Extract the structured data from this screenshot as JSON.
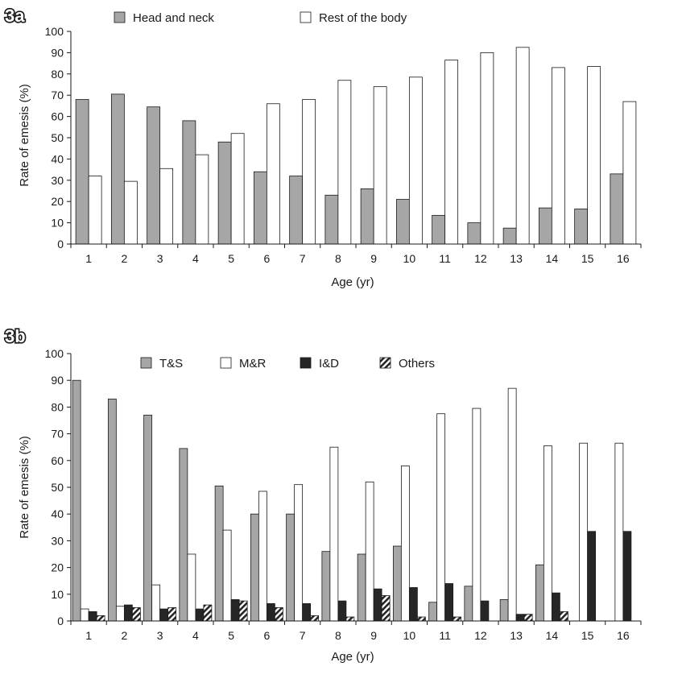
{
  "chart_data": [
    {
      "panel_label": "3a",
      "type": "bar",
      "xlabel": "Age (yr)",
      "ylabel": "Rate of emesis (%)",
      "ylim": [
        0,
        100
      ],
      "yticks": [
        0,
        10,
        20,
        30,
        40,
        50,
        60,
        70,
        80,
        90,
        100
      ],
      "categories": [
        "1",
        "2",
        "3",
        "4",
        "5",
        "6",
        "7",
        "8",
        "9",
        "10",
        "11",
        "12",
        "13",
        "14",
        "15",
        "16"
      ],
      "grid": false,
      "legend_position": "top",
      "series": [
        {
          "name": "Head and neck",
          "color": "#a6a6a6",
          "pattern": "solid",
          "values": [
            68,
            70.5,
            64.5,
            58,
            48,
            34,
            32,
            23,
            26,
            21,
            13.5,
            10,
            7.5,
            17,
            16.5,
            33
          ]
        },
        {
          "name": "Rest of the body",
          "color": "#ffffff",
          "pattern": "outline",
          "values": [
            32,
            29.5,
            35.5,
            42,
            52,
            66,
            68,
            77,
            74,
            78.5,
            86.5,
            90,
            92.5,
            83,
            83.5,
            67
          ]
        }
      ]
    },
    {
      "panel_label": "3b",
      "type": "bar",
      "xlabel": "Age (yr)",
      "ylabel": "Rate of emesis (%)",
      "ylim": [
        0,
        100
      ],
      "yticks": [
        0,
        10,
        20,
        30,
        40,
        50,
        60,
        70,
        80,
        90,
        100
      ],
      "categories": [
        "1",
        "2",
        "3",
        "4",
        "5",
        "6",
        "7",
        "8",
        "9",
        "10",
        "11",
        "12",
        "13",
        "14",
        "15",
        "16"
      ],
      "grid": false,
      "legend_position": "top",
      "series": [
        {
          "name": "T&S",
          "color": "#a6a6a6",
          "pattern": "solid",
          "values": [
            90,
            83,
            77,
            64.5,
            50.5,
            40,
            40,
            26,
            25,
            28,
            7,
            13,
            8,
            21,
            0,
            0
          ]
        },
        {
          "name": "M&R",
          "color": "#ffffff",
          "pattern": "outline",
          "values": [
            4.5,
            5.5,
            13.5,
            25,
            34,
            48.5,
            51,
            65,
            52,
            58,
            77.5,
            79.5,
            87,
            65.5,
            66.5,
            66.5
          ]
        },
        {
          "name": "I&D",
          "color": "#262626",
          "pattern": "solid",
          "values": [
            3.5,
            6,
            4.5,
            4.5,
            8,
            6.5,
            6.5,
            7.5,
            12,
            12.5,
            14,
            7.5,
            2.5,
            10.5,
            33.5,
            33.5
          ]
        },
        {
          "name": "Others",
          "color": "#262626",
          "pattern": "hatched",
          "values": [
            2,
            5,
            5,
            6,
            7.5,
            5,
            2,
            1.5,
            9.5,
            1.5,
            1.5,
            0,
            2.5,
            3.5,
            0,
            0
          ]
        }
      ]
    }
  ]
}
